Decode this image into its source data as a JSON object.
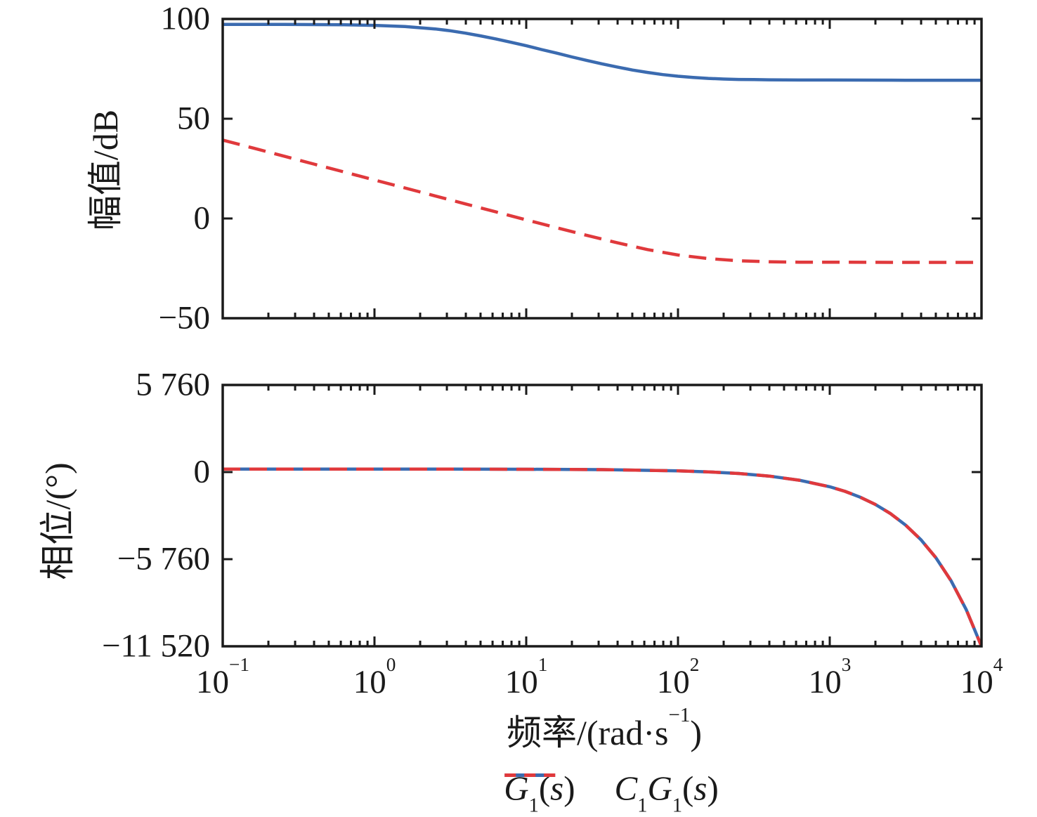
{
  "chart_data": {
    "type": "line",
    "plot_kind": "bode",
    "title": "",
    "grid": false,
    "legend_position": "below",
    "x_axis": {
      "scale": "log",
      "range_log10": [
        -1,
        4
      ],
      "label_parts": [
        {
          "text": "频率/(rad·s"
        },
        {
          "text": "−1",
          "sup": true
        },
        {
          "text": ")"
        }
      ],
      "major_ticks": [
        {
          "log10": -1,
          "parts": [
            {
              "text": "10"
            },
            {
              "text": "−1",
              "sup": true
            }
          ]
        },
        {
          "log10": 0,
          "parts": [
            {
              "text": "10"
            },
            {
              "text": "0",
              "sup": true
            }
          ]
        },
        {
          "log10": 1,
          "parts": [
            {
              "text": "10"
            },
            {
              "text": "1",
              "sup": true
            }
          ]
        },
        {
          "log10": 2,
          "parts": [
            {
              "text": "10"
            },
            {
              "text": "2",
              "sup": true
            }
          ]
        },
        {
          "log10": 3,
          "parts": [
            {
              "text": "10"
            },
            {
              "text": "3",
              "sup": true
            }
          ]
        },
        {
          "log10": 4,
          "parts": [
            {
              "text": "10"
            },
            {
              "text": "4",
              "sup": true
            }
          ]
        }
      ],
      "minor_ticks": "log multiples 2-9 each decade"
    },
    "colors": {
      "g1": "#3B6BB0",
      "c1g1": "#E0393C",
      "axis": "#1a1a1a"
    },
    "subplots": [
      {
        "name": "magnitude",
        "ylabel": "幅值/dB",
        "ylim": [
          -50,
          100
        ],
        "yticks": [
          {
            "value": 100,
            "label": "100"
          },
          {
            "value": 50,
            "label": "50"
          },
          {
            "value": 0,
            "label": "0"
          },
          {
            "value": -50,
            "label": "−50"
          }
        ],
        "series": [
          {
            "name": "G₁(s)",
            "color": "#3B6BB0",
            "style": "solid",
            "points_log10w_vs_dB": [
              [
                -1,
                97.3
              ],
              [
                -0.8,
                97.3
              ],
              [
                -0.6,
                97.3
              ],
              [
                -0.4,
                97.2
              ],
              [
                -0.2,
                97.1
              ],
              [
                0,
                96.8
              ],
              [
                0.2,
                96.2
              ],
              [
                0.4,
                95.0
              ],
              [
                0.5,
                94.1
              ],
              [
                0.6,
                92.9
              ],
              [
                0.7,
                91.5
              ],
              [
                0.8,
                90.0
              ],
              [
                0.9,
                88.3
              ],
              [
                1,
                86.6
              ],
              [
                1.1,
                84.7
              ],
              [
                1.2,
                82.9
              ],
              [
                1.3,
                81.0
              ],
              [
                1.4,
                79.2
              ],
              [
                1.5,
                77.5
              ],
              [
                1.6,
                75.9
              ],
              [
                1.7,
                74.4
              ],
              [
                1.8,
                73.2
              ],
              [
                1.9,
                72.1
              ],
              [
                2,
                71.3
              ],
              [
                2.1,
                70.7
              ],
              [
                2.2,
                70.2
              ],
              [
                2.3,
                69.9
              ],
              [
                2.4,
                69.7
              ],
              [
                2.5,
                69.6
              ],
              [
                2.6,
                69.5
              ],
              [
                2.8,
                69.4
              ],
              [
                3,
                69.4
              ],
              [
                3.5,
                69.3
              ],
              [
                4,
                69.3
              ]
            ]
          },
          {
            "name": "C₁G₁(s)",
            "color": "#E0393C",
            "style": "dashed",
            "points_log10w_vs_dB": [
              [
                -1,
                39.3
              ],
              [
                -0.8,
                35.3
              ],
              [
                -0.6,
                31.3
              ],
              [
                -0.4,
                27.3
              ],
              [
                -0.2,
                23.3
              ],
              [
                0,
                19.3
              ],
              [
                0.2,
                15.3
              ],
              [
                0.4,
                11.3
              ],
              [
                0.6,
                7.3
              ],
              [
                0.8,
                3.3
              ],
              [
                1,
                -0.7
              ],
              [
                1.2,
                -4.6
              ],
              [
                1.4,
                -8.5
              ],
              [
                1.6,
                -12.2
              ],
              [
                1.8,
                -15.6
              ],
              [
                2,
                -18.3
              ],
              [
                2.2,
                -20.1
              ],
              [
                2.4,
                -21.2
              ],
              [
                2.6,
                -21.7
              ],
              [
                2.8,
                -21.9
              ],
              [
                3,
                -21.9
              ],
              [
                3.5,
                -22.0
              ],
              [
                4,
                -22.0
              ]
            ]
          }
        ]
      },
      {
        "name": "phase",
        "ylabel": "相位/(°)",
        "ylim": [
          -11520,
          5760
        ],
        "yticks": [
          {
            "value": 5760,
            "label": "5 760"
          },
          {
            "value": 0,
            "label": "0"
          },
          {
            "value": -5760,
            "label": "−5 760"
          },
          {
            "value": -11520,
            "label": "−11 520"
          }
        ],
        "series": [
          {
            "name": "G₁(s)",
            "color": "#3B6BB0",
            "style": "solid",
            "points_log10w_vs_deg": [
              [
                -1,
                200
              ],
              [
                0,
                199
              ],
              [
                0.5,
                196
              ],
              [
                1,
                188
              ],
              [
                1.5,
                163
              ],
              [
                2,
                83
              ],
              [
                2.2,
                14
              ],
              [
                2.4,
                -95
              ],
              [
                2.6,
                -267
              ],
              [
                2.8,
                -540
              ],
              [
                3,
                -972
              ],
              [
                3.1,
                -1275
              ],
              [
                3.2,
                -1658
              ],
              [
                3.3,
                -2138
              ],
              [
                3.4,
                -2745
              ],
              [
                3.5,
                -3506
              ],
              [
                3.6,
                -4466
              ],
              [
                3.7,
                -5674
              ],
              [
                3.8,
                -7196
              ],
              [
                3.9,
                -9109
              ],
              [
                4,
                -11520
              ]
            ]
          },
          {
            "name": "C₁G₁(s)",
            "color": "#E0393C",
            "style": "dashed",
            "points_log10w_vs_deg": [
              [
                -1,
                200
              ],
              [
                0,
                199
              ],
              [
                0.5,
                196
              ],
              [
                1,
                188
              ],
              [
                1.5,
                163
              ],
              [
                2,
                83
              ],
              [
                2.2,
                14
              ],
              [
                2.4,
                -95
              ],
              [
                2.6,
                -267
              ],
              [
                2.8,
                -540
              ],
              [
                3,
                -972
              ],
              [
                3.1,
                -1275
              ],
              [
                3.2,
                -1658
              ],
              [
                3.3,
                -2138
              ],
              [
                3.4,
                -2745
              ],
              [
                3.5,
                -3506
              ],
              [
                3.6,
                -4466
              ],
              [
                3.7,
                -5674
              ],
              [
                3.8,
                -7196
              ],
              [
                3.9,
                -9109
              ],
              [
                4,
                -11520
              ]
            ]
          }
        ]
      }
    ],
    "legend": [
      {
        "color": "#3B6BB0",
        "style": "solid",
        "parts": [
          {
            "text": "G",
            "italic": true
          },
          {
            "text": "1",
            "sub": true
          },
          {
            "text": "("
          },
          {
            "text": "s",
            "italic": true
          },
          {
            "text": ")"
          }
        ]
      },
      {
        "color": "#E0393C",
        "style": "dashed",
        "parts": [
          {
            "text": "C",
            "italic": true
          },
          {
            "text": "1",
            "sub": true
          },
          {
            "text": "G",
            "italic": true
          },
          {
            "text": "1",
            "sub": true
          },
          {
            "text": "("
          },
          {
            "text": "s",
            "italic": true
          },
          {
            "text": ")"
          }
        ]
      }
    ]
  }
}
